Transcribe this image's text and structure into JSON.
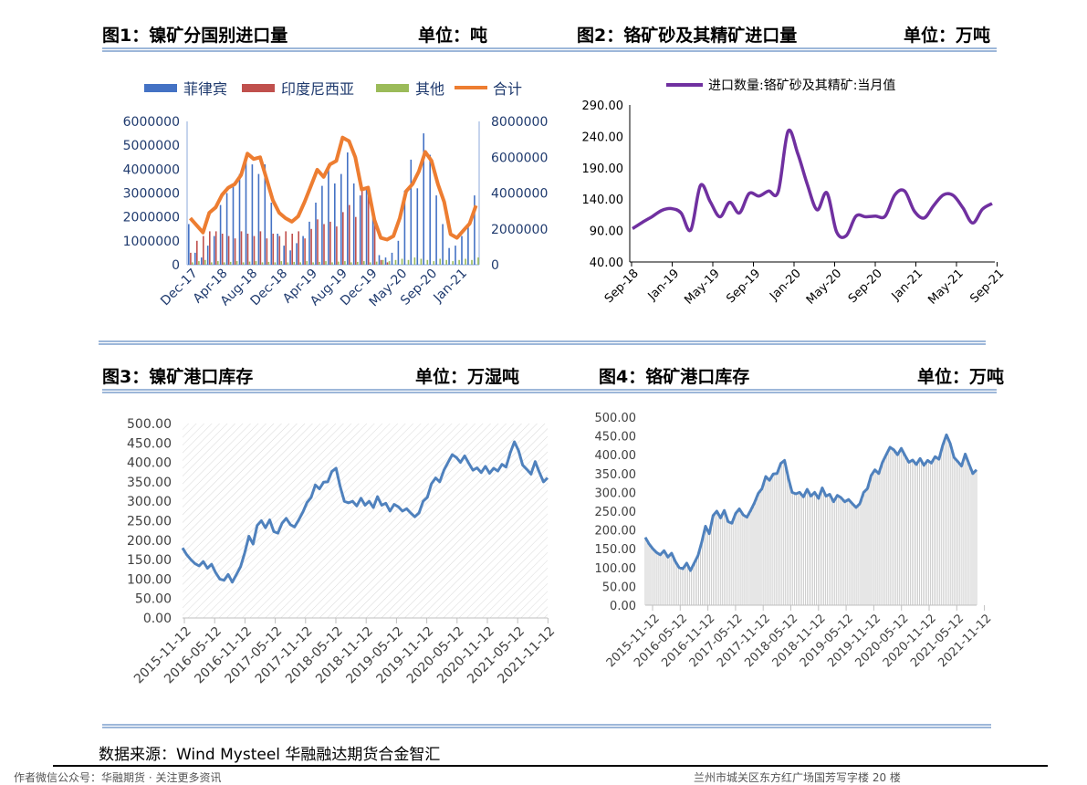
{
  "headers": {
    "fig1_title": "图1：镍矿分国别进口量",
    "fig1_unit": "单位：吨",
    "fig2_title": "图2：铬矿砂及其精矿进口量",
    "fig2_unit": "单位：万吨",
    "fig3_title": "图3：镍矿港口库存",
    "fig3_unit": "单位：万湿吨",
    "fig4_title": "图4：铬矿港口库存",
    "fig4_unit": "单位：万吨"
  },
  "source": "数据来源：Wind Mysteel  华融融达期货合金智汇",
  "footer": {
    "left": "作者微信公众号：华融期货 · 关注更多资讯",
    "right": "兰州市城关区东方红广场国芳写字楼 20 楼"
  },
  "chart_data": [
    {
      "type": "bar",
      "id": "fig1",
      "legend_position": "top",
      "series": [
        {
          "name": "菲律宾",
          "color": "#4472c4",
          "axis": "left"
        },
        {
          "name": "印度尼西亚",
          "color": "#c0504d",
          "axis": "left"
        },
        {
          "name": "其他",
          "color": "#9bbb59",
          "axis": "left"
        },
        {
          "name": "合计",
          "color": "#ed7d31",
          "axis": "right",
          "line": true
        }
      ],
      "x_tick_labels": [
        "Dec-17",
        "Apr-18",
        "Aug-18",
        "Dec-18",
        "Apr-19",
        "Aug-19",
        "Dec-19",
        "May-20",
        "Sep-20",
        "Jan-21"
      ],
      "left_axis": {
        "ylim": [
          0,
          6000000
        ],
        "ticks": [
          "0",
          "1000000",
          "2000000",
          "3000000",
          "4000000",
          "5000000",
          "6000000"
        ]
      },
      "right_axis": {
        "ylim": [
          0,
          8000000
        ],
        "ticks": [
          "0",
          "2000000",
          "4000000",
          "6000000",
          "8000000"
        ]
      },
      "philippines": [
        1700000,
        500000,
        300000,
        800000,
        1200000,
        2500000,
        3000000,
        3300000,
        3800000,
        4400000,
        4200000,
        3800000,
        4200000,
        2600000,
        1300000,
        800000,
        600000,
        900000,
        1200000,
        1800000,
        2600000,
        3300000,
        4200000,
        3400000,
        3800000,
        4700000,
        3400000,
        2900000,
        3200000,
        2000000,
        400000,
        300000,
        500000,
        1000000,
        3100000,
        4400000,
        3200000,
        5500000,
        4600000,
        2900000,
        1700000,
        700000,
        800000,
        1200000,
        1700000,
        2900000
      ],
      "indonesia": [
        500000,
        1000000,
        1200000,
        1400000,
        1400000,
        1300000,
        1200000,
        1100000,
        1400000,
        1300000,
        1200000,
        1400000,
        1100000,
        1300000,
        1200000,
        1400000,
        1300000,
        1400000,
        1100000,
        1500000,
        1900000,
        1700000,
        1800000,
        1600000,
        2200000,
        2500000,
        2000000,
        3100000,
        3300000,
        2000000,
        200000,
        100000,
        0,
        0,
        0,
        0,
        0,
        0,
        0,
        0,
        0,
        0,
        0,
        0,
        0,
        0
      ],
      "others": [
        100000,
        150000,
        200000,
        100000,
        150000,
        100000,
        120000,
        150000,
        100000,
        130000,
        150000,
        100000,
        120000,
        100000,
        150000,
        100000,
        120000,
        100000,
        150000,
        100000,
        120000,
        150000,
        100000,
        130000,
        150000,
        100000,
        120000,
        150000,
        100000,
        130000,
        200000,
        150000,
        200000,
        250000,
        200000,
        300000,
        250000,
        200000,
        150000,
        250000,
        200000,
        150000,
        200000,
        250000,
        200000,
        300000
      ],
      "total": [
        2600000,
        2200000,
        1800000,
        2900000,
        3200000,
        3900000,
        4300000,
        4500000,
        5000000,
        6200000,
        5900000,
        6000000,
        4800000,
        3600000,
        2900000,
        2600000,
        2400000,
        2700000,
        3500000,
        4400000,
        5300000,
        4900000,
        5600000,
        5800000,
        7100000,
        6900000,
        6000000,
        4200000,
        4300000,
        2500000,
        1500000,
        1400000,
        1600000,
        2600000,
        4100000,
        4500000,
        5200000,
        6300000,
        5800000,
        4500000,
        3500000,
        1700000,
        1500000,
        1900000,
        2300000,
        3300000
      ]
    },
    {
      "type": "line",
      "id": "fig2",
      "legend_position": "top",
      "series": [
        {
          "name": "进口数量:铬矿砂及其精矿:当月值",
          "color": "#7030a0"
        }
      ],
      "x_tick_labels": [
        "Sep-18",
        "Jan-19",
        "May-19",
        "Sep-19",
        "Jan-20",
        "May-20",
        "Sep-20",
        "Jan-21",
        "May-21",
        "Sep-21"
      ],
      "ylim": [
        40,
        290
      ],
      "y_ticks": [
        "40.00",
        "90.00",
        "140.00",
        "190.00",
        "240.00",
        "290.00"
      ],
      "values": [
        93,
        103,
        112,
        122,
        125,
        118,
        91,
        162,
        136,
        112,
        135,
        118,
        149,
        145,
        153,
        152,
        248,
        213,
        163,
        123,
        150,
        88,
        82,
        113,
        112,
        113,
        113,
        147,
        153,
        121,
        110,
        130,
        147,
        146,
        126,
        102,
        124,
        133
      ]
    },
    {
      "type": "line",
      "id": "fig3",
      "series": [
        {
          "name": "",
          "color": "#4f81bd"
        }
      ],
      "x_tick_labels": [
        "2015-11-12",
        "2016-05-12",
        "2016-11-12",
        "2017-05-12",
        "2017-11-12",
        "2018-05-12",
        "2018-11-12",
        "2019-05-12",
        "2019-11-12",
        "2020-05-12",
        "2020-11-12",
        "2021-05-12",
        "2021-11-12"
      ],
      "ylim": [
        0,
        500
      ],
      "y_ticks": [
        "0.00",
        "50.00",
        "100.00",
        "150.00",
        "200.00",
        "250.00",
        "300.00",
        "350.00",
        "400.00",
        "450.00",
        "500.00"
      ],
      "values": [
        180,
        163,
        150,
        140,
        134,
        145,
        128,
        138,
        116,
        100,
        97,
        112,
        92,
        112,
        132,
        168,
        210,
        190,
        238,
        250,
        232,
        252,
        222,
        218,
        244,
        256,
        240,
        234,
        252,
        272,
        297,
        310,
        342,
        332,
        349,
        350,
        377,
        385,
        338,
        300,
        296,
        300,
        288,
        308,
        290,
        300,
        284,
        312,
        290,
        295,
        275,
        292,
        286,
        275,
        281,
        270,
        260,
        270,
        300,
        310,
        345,
        360,
        350,
        380,
        400,
        420,
        413,
        400,
        417,
        398,
        380,
        386,
        374,
        390,
        372,
        385,
        378,
        395,
        388,
        425,
        453,
        430,
        393,
        382,
        370,
        402,
        375,
        350,
        360
      ]
    },
    {
      "type": "area",
      "id": "fig4",
      "series": [
        {
          "name": "",
          "color": "#4f81bd"
        }
      ],
      "x_tick_labels": [
        "2015-11-12",
        "2016-05-12",
        "2016-11-12",
        "2017-05-12",
        "2017-11-12",
        "2018-05-12",
        "2018-11-12",
        "2019-05-12",
        "2019-11-12",
        "2020-05-12",
        "2020-11-12",
        "2021-05-12",
        "2021-11-12"
      ],
      "ylim": [
        0,
        500
      ],
      "y_ticks": [
        "0.00",
        "50.00",
        "100.00",
        "150.00",
        "200.00",
        "250.00",
        "300.00",
        "350.00",
        "400.00",
        "450.00",
        "500.00"
      ],
      "values": [
        180,
        163,
        150,
        140,
        134,
        145,
        128,
        138,
        116,
        100,
        97,
        112,
        92,
        112,
        132,
        168,
        210,
        190,
        238,
        250,
        232,
        252,
        222,
        218,
        244,
        256,
        240,
        234,
        252,
        272,
        297,
        310,
        342,
        332,
        349,
        350,
        377,
        385,
        338,
        300,
        296,
        300,
        288,
        308,
        290,
        300,
        284,
        312,
        290,
        295,
        275,
        292,
        286,
        275,
        281,
        270,
        260,
        270,
        300,
        310,
        345,
        360,
        350,
        380,
        400,
        420,
        413,
        400,
        417,
        398,
        380,
        386,
        374,
        390,
        372,
        385,
        378,
        395,
        388,
        425,
        453,
        430,
        393,
        382,
        370,
        402,
        375,
        350,
        360
      ]
    }
  ]
}
